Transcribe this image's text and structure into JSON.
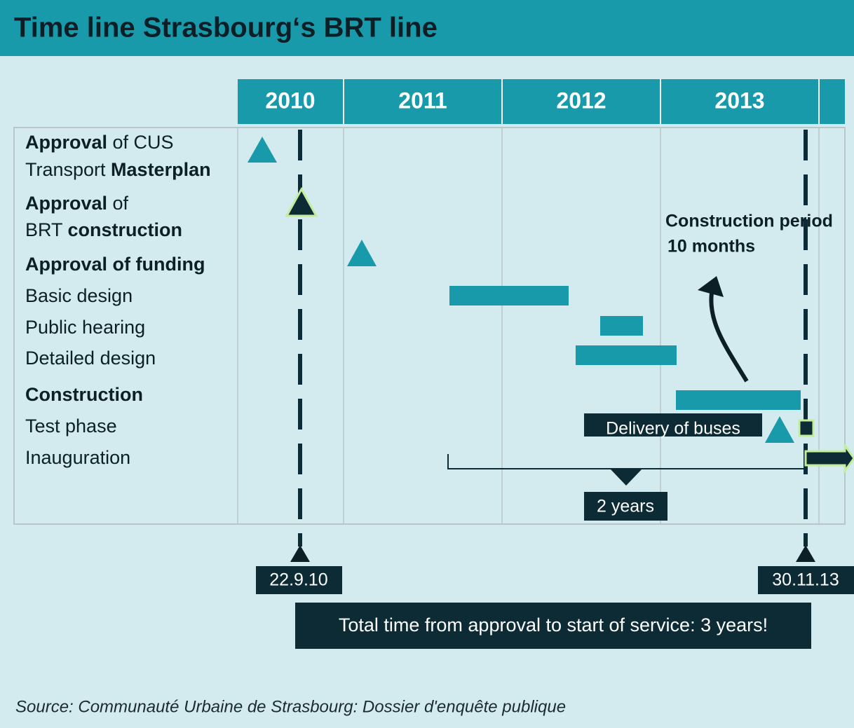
{
  "title": "Time line Strasbourg‘s BRT line",
  "years": [
    "2010",
    "2011",
    "2012",
    "2013"
  ],
  "rows": [
    {
      "lines": [
        [
          {
            "text": "Approval",
            "bold": true
          },
          {
            "text": " of CUS"
          }
        ],
        [
          {
            "text": "Transport "
          },
          {
            "text": "Masterplan",
            "bold": true
          }
        ]
      ]
    },
    {
      "lines": [
        [
          {
            "text": "Approval",
            "bold": true
          },
          {
            "text": " of"
          }
        ],
        [
          {
            "text": "BRT "
          },
          {
            "text": "construction",
            "bold": true
          }
        ]
      ]
    },
    {
      "lines": [
        [
          {
            "text": "Approval of funding",
            "bold": true
          }
        ]
      ]
    },
    {
      "lines": [
        [
          {
            "text": "Basic design"
          }
        ]
      ]
    },
    {
      "lines": [
        [
          {
            "text": "Public hearing"
          }
        ]
      ]
    },
    {
      "lines": [
        [
          {
            "text": "Detailed design"
          }
        ]
      ]
    },
    {
      "lines": [
        [
          {
            "text": "Construction",
            "bold": true
          }
        ]
      ]
    },
    {
      "lines": [
        [
          {
            "text": "Test phase"
          }
        ]
      ]
    },
    {
      "lines": [
        [
          {
            "text": "Inauguration"
          }
        ]
      ]
    }
  ],
  "annotations": {
    "construction_period": [
      "Construction period",
      "10 months"
    ],
    "delivery": "Delivery of buses",
    "duration": "2 years",
    "start_date": "22.9.10",
    "end_date": "30.11.13",
    "total": "Total time from approval to start of service: 3 years!"
  },
  "source": "Source: Communauté Urbaine de Strasbourg: Dossier d'enquête publique"
}
